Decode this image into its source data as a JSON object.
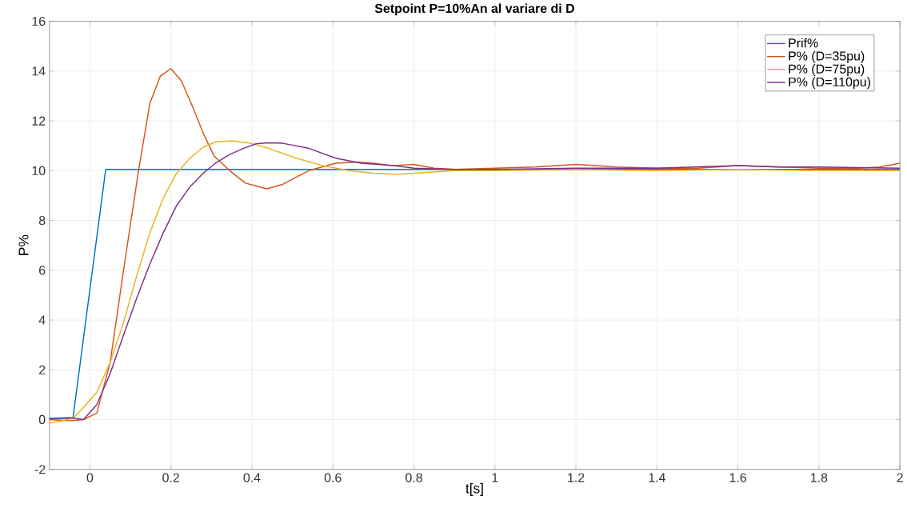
{
  "chart_data": {
    "type": "line",
    "title": "Setpoint P=10%An al variare di D",
    "xlabel": "t[s]",
    "ylabel": "P%",
    "xlim": [
      -0.1,
      2
    ],
    "ylim": [
      -2,
      16
    ],
    "xticks": [
      0,
      0.2,
      0.4,
      0.6,
      0.8,
      1,
      1.2,
      1.4,
      1.6,
      1.8,
      2
    ],
    "yticks": [
      -2,
      0,
      2,
      4,
      6,
      8,
      10,
      12,
      14,
      16
    ],
    "grid": true,
    "legend": "top right",
    "series": [
      {
        "name": "Prif%",
        "color": "#0072bd",
        "x": [
          -0.1,
          -0.042,
          0.039,
          2.0
        ],
        "values": [
          0.05,
          0.05,
          10.05,
          10.05
        ]
      },
      {
        "name": "P% (D=35pu)",
        "color": "#d95319",
        "x": [
          -0.1,
          -0.05,
          -0.016,
          0.017,
          0.05,
          0.083,
          0.12,
          0.148,
          0.174,
          0.2,
          0.226,
          0.254,
          0.28,
          0.306,
          0.345,
          0.384,
          0.437,
          0.476,
          0.54,
          0.607,
          0.66,
          0.7,
          0.75,
          0.8,
          0.85,
          0.9,
          1.0,
          1.1,
          1.2,
          1.3,
          1.4,
          1.5,
          1.6,
          1.7,
          1.8,
          1.9,
          1.95,
          2.0
        ],
        "values": [
          0.0,
          -0.05,
          0.0,
          0.26,
          2.3,
          6.0,
          10.0,
          12.7,
          13.8,
          14.1,
          13.6,
          12.55,
          11.5,
          10.6,
          10.0,
          9.5,
          9.27,
          9.45,
          10.0,
          10.3,
          10.35,
          10.3,
          10.2,
          10.25,
          10.1,
          10.05,
          10.1,
          10.15,
          10.25,
          10.15,
          10.1,
          10.1,
          10.2,
          10.15,
          10.1,
          10.1,
          10.15,
          10.3
        ]
      },
      {
        "name": "P% (D=75pu)",
        "color": "#edb120",
        "x": [
          -0.1,
          -0.042,
          -0.016,
          0.017,
          0.05,
          0.083,
          0.116,
          0.148,
          0.181,
          0.214,
          0.247,
          0.28,
          0.31,
          0.35,
          0.397,
          0.44,
          0.51,
          0.575,
          0.64,
          0.7,
          0.76,
          0.8,
          0.9,
          1.0,
          1.2,
          1.4,
          1.6,
          1.8,
          2.0
        ],
        "values": [
          -0.15,
          0.05,
          0.48,
          1.1,
          2.3,
          3.9,
          5.8,
          7.5,
          8.9,
          9.9,
          10.5,
          10.95,
          11.15,
          11.2,
          11.1,
          10.9,
          10.5,
          10.2,
          10.0,
          9.9,
          9.85,
          9.9,
          10.0,
          10.0,
          10.05,
          10.0,
          10.05,
          10.0,
          10.0
        ]
      },
      {
        "name": "P% (D=110pu)",
        "color": "#7e2f8e",
        "x": [
          -0.1,
          -0.05,
          -0.016,
          0.017,
          0.05,
          0.083,
          0.116,
          0.148,
          0.181,
          0.214,
          0.247,
          0.28,
          0.31,
          0.345,
          0.38,
          0.41,
          0.44,
          0.476,
          0.54,
          0.607,
          0.67,
          0.75,
          0.8,
          0.9,
          1.0,
          1.2,
          1.4,
          1.6,
          1.7,
          1.8,
          2.0
        ],
        "values": [
          0.05,
          0.08,
          0.0,
          0.6,
          1.85,
          3.4,
          4.9,
          6.25,
          7.5,
          8.6,
          9.35,
          9.9,
          10.3,
          10.65,
          10.9,
          11.08,
          11.12,
          11.1,
          10.9,
          10.5,
          10.3,
          10.2,
          10.1,
          10.05,
          10.05,
          10.1,
          10.1,
          10.2,
          10.15,
          10.15,
          10.1
        ]
      }
    ]
  }
}
